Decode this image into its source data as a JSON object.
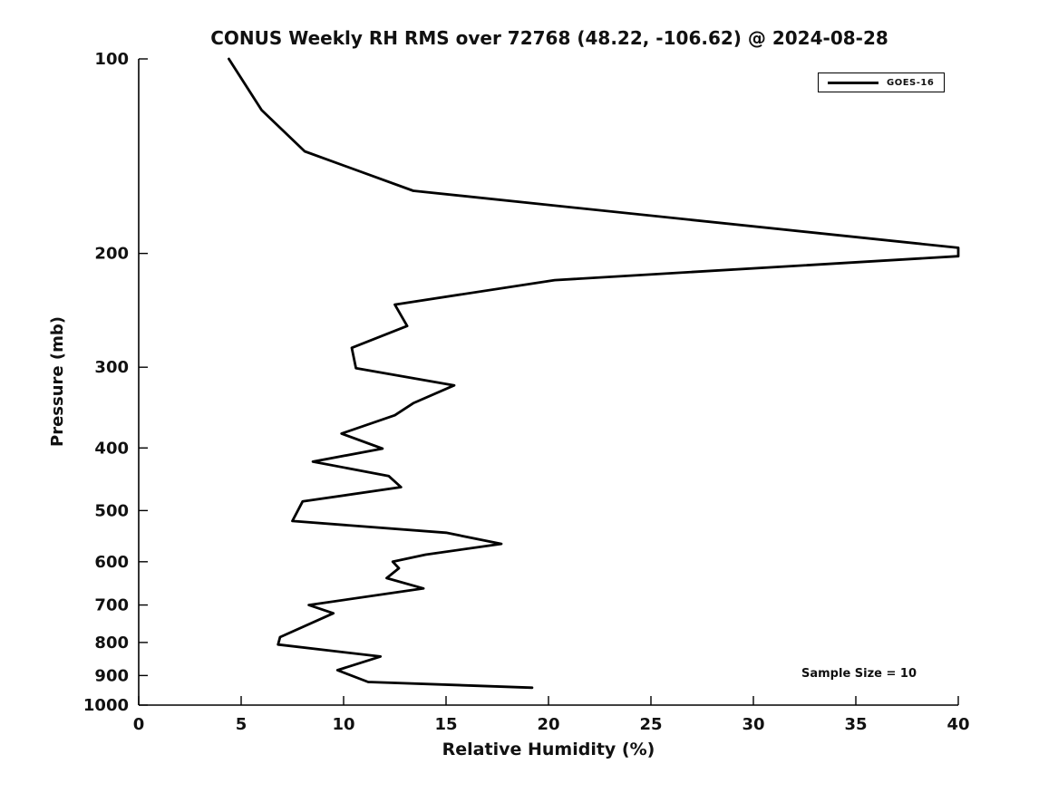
{
  "chart_data": {
    "type": "line",
    "title": "CONUS Weekly RH RMS over 72768 (48.22, -106.62) @ 2024-08-28",
    "xlabel": "Relative Humidity (%)",
    "ylabel": "Pressure (mb)",
    "xlim": [
      0,
      40
    ],
    "ylim": [
      100,
      1000
    ],
    "yscale": "log",
    "y_inverted": true,
    "grid": false,
    "x_ticks": [
      0,
      5,
      10,
      15,
      20,
      25,
      30,
      35,
      40
    ],
    "y_ticks": [
      100,
      200,
      300,
      400,
      500,
      600,
      700,
      800,
      900,
      1000
    ],
    "line_color": "#000000",
    "background_color": "#ffffff",
    "legend": {
      "position": "top-right",
      "entries": [
        {
          "label": "GOES-16",
          "color": "#000000"
        }
      ]
    },
    "annotations": [
      {
        "text": "Sample Size = 10",
        "position": "lower-right"
      }
    ],
    "series": [
      {
        "name": "GOES-16",
        "color": "#000000",
        "points_rh_pressure": [
          [
            4.4,
            100
          ],
          [
            6.0,
            120
          ],
          [
            8.1,
            139
          ],
          [
            13.4,
            160
          ],
          [
            40.0,
            196
          ],
          [
            40.0,
            202
          ],
          [
            20.3,
            220
          ],
          [
            12.5,
            240
          ],
          [
            13.1,
            259
          ],
          [
            10.4,
            280
          ],
          [
            10.6,
            301
          ],
          [
            15.4,
            320
          ],
          [
            13.4,
            341
          ],
          [
            12.5,
            356
          ],
          [
            9.9,
            380
          ],
          [
            11.9,
            401
          ],
          [
            8.5,
            420
          ],
          [
            12.2,
            442
          ],
          [
            12.8,
            460
          ],
          [
            8.0,
            484
          ],
          [
            7.5,
            519
          ],
          [
            15.0,
            541
          ],
          [
            17.7,
            563
          ],
          [
            14.0,
            585
          ],
          [
            12.4,
            600
          ],
          [
            12.7,
            614
          ],
          [
            12.1,
            636
          ],
          [
            13.9,
            660
          ],
          [
            8.3,
            700
          ],
          [
            9.5,
            721
          ],
          [
            6.9,
            785
          ],
          [
            6.8,
            806
          ],
          [
            11.8,
            841
          ],
          [
            9.7,
            883
          ],
          [
            11.2,
            921
          ],
          [
            19.2,
            940
          ]
        ]
      }
    ]
  }
}
